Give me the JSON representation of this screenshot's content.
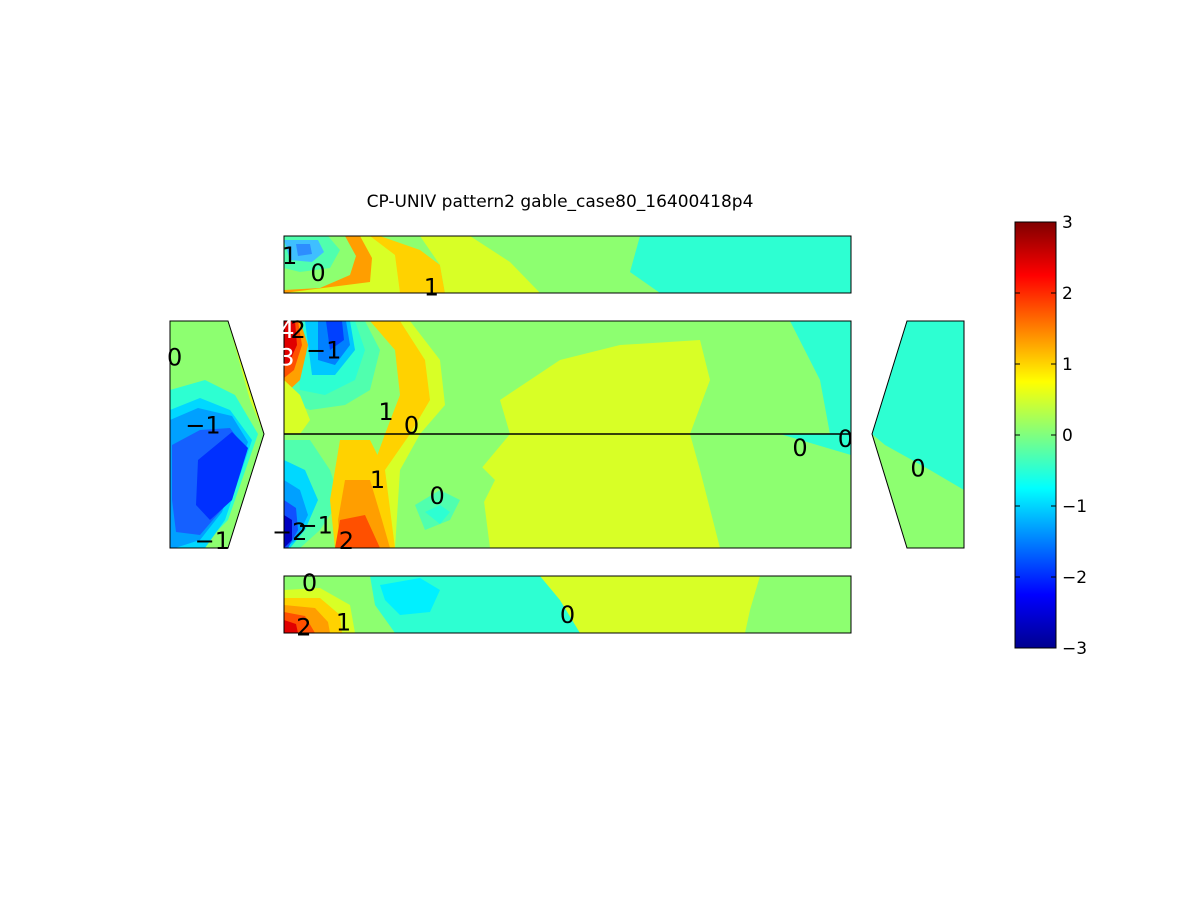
{
  "chart_data": {
    "type": "heatmap",
    "title": "CP-UNIV pattern2 gable_case80_16400418p4",
    "colormap": "jet",
    "clim": [
      -3,
      3
    ],
    "colorbar": {
      "location": "right",
      "ticks": [
        3,
        2,
        1,
        0,
        -1,
        -2,
        -3
      ],
      "tick_labels": [
        "3",
        "2",
        "1",
        "0",
        "−1",
        "−2",
        "−3"
      ]
    },
    "panels": [
      {
        "name": "top",
        "contour_labels": [
          {
            "text": "1",
            "value": 1,
            "u": 0.01,
            "v": 0.35
          },
          {
            "text": "0",
            "value": 0,
            "u": 0.06,
            "v": 0.65
          },
          {
            "text": "1",
            "value": 1,
            "u": 0.26,
            "v": 0.9
          }
        ]
      },
      {
        "name": "left",
        "contour_labels": [
          {
            "text": "0",
            "value": 0,
            "u": 0.05,
            "v": 0.16
          },
          {
            "text": "−1",
            "value": -1,
            "u": 0.35,
            "v": 0.46
          },
          {
            "text": "−1",
            "value": -1,
            "u": 0.45,
            "v": 0.97
          }
        ]
      },
      {
        "name": "center",
        "contour_labels": [
          {
            "text": "4",
            "value": 4,
            "u": 0.005,
            "v": 0.04,
            "light": true
          },
          {
            "text": "2",
            "value": 2,
            "u": 0.025,
            "v": 0.04
          },
          {
            "text": "3",
            "value": 3,
            "u": 0.005,
            "v": 0.16,
            "light": true
          },
          {
            "text": "−1",
            "value": -1,
            "u": 0.07,
            "v": 0.13
          },
          {
            "text": "1",
            "value": 1,
            "u": 0.18,
            "v": 0.4
          },
          {
            "text": "0",
            "value": 0,
            "u": 0.225,
            "v": 0.46
          },
          {
            "text": "1",
            "value": 1,
            "u": 0.165,
            "v": 0.7
          },
          {
            "text": "0",
            "value": 0,
            "u": 0.27,
            "v": 0.77
          },
          {
            "text": "−2",
            "value": -2,
            "u": 0.01,
            "v": 0.93
          },
          {
            "text": "−1",
            "value": -1,
            "u": 0.055,
            "v": 0.9
          },
          {
            "text": "2",
            "value": 2,
            "u": 0.11,
            "v": 0.97
          },
          {
            "text": "0",
            "value": 0,
            "u": 0.91,
            "v": 0.56
          },
          {
            "text": "0",
            "value": 0,
            "u": 0.99,
            "v": 0.52
          }
        ]
      },
      {
        "name": "right",
        "contour_labels": [
          {
            "text": "0",
            "value": 0,
            "u": 0.5,
            "v": 0.65
          }
        ]
      },
      {
        "name": "bottom",
        "contour_labels": [
          {
            "text": "0",
            "value": 0,
            "u": 0.045,
            "v": 0.12
          },
          {
            "text": "2",
            "value": 2,
            "u": 0.035,
            "v": 0.9
          },
          {
            "text": "1",
            "value": 1,
            "u": 0.105,
            "v": 0.82
          },
          {
            "text": "0",
            "value": 0,
            "u": 0.5,
            "v": 0.68
          }
        ]
      }
    ]
  }
}
